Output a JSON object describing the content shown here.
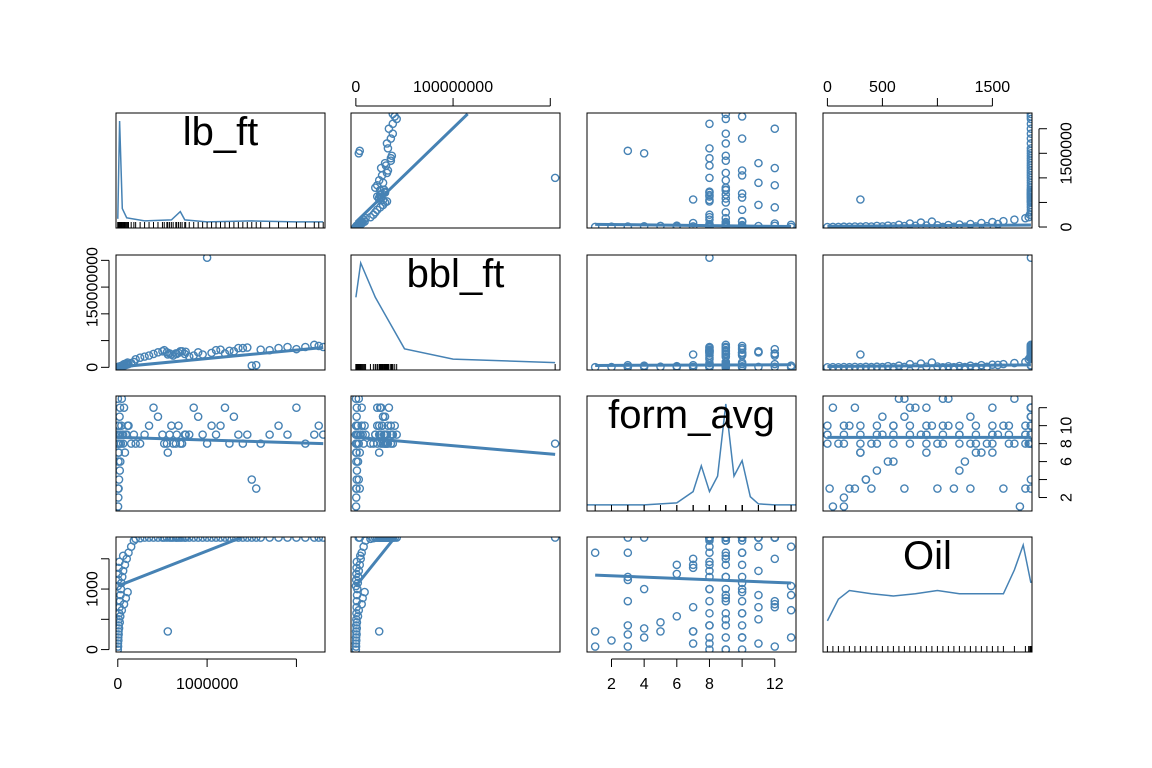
{
  "colors": {
    "series": "#4682B4",
    "axis": "#000000",
    "background": "#ffffff"
  },
  "chart_data": {
    "type": "scatter",
    "subtype": "scatterplot-matrix",
    "variables": [
      "lb_ft",
      "bbl_ft",
      "form_avg",
      "Oil"
    ],
    "diagonal": {
      "lb_ft": "density",
      "bbl_ft": "density",
      "form_avg": "density",
      "Oil": "density"
    },
    "ranges": {
      "lb_ft": [
        -20000,
        2320000
      ],
      "bbl_ft": [
        -5000000,
        210000000
      ],
      "form_avg": [
        0.5,
        13.3
      ],
      "Oil": [
        -40,
        1860
      ]
    },
    "axes": {
      "top": [
        {
          "column": 1,
          "variable": "bbl_ft",
          "ticks": [
            0,
            100000000,
            200000000
          ],
          "labels": [
            "0",
            "100000000",
            ""
          ]
        },
        {
          "column": 3,
          "variable": "Oil",
          "ticks": [
            0,
            500,
            1000,
            1500
          ],
          "labels": [
            "0",
            "500",
            "",
            "1500"
          ]
        }
      ],
      "bottom": [
        {
          "column": 0,
          "variable": "lb_ft",
          "ticks": [
            0,
            1000000,
            2000000
          ],
          "labels": [
            "0",
            "1000000",
            ""
          ]
        },
        {
          "column": 2,
          "variable": "form_avg",
          "ticks": [
            2,
            4,
            6,
            8,
            10,
            12
          ],
          "labels": [
            "2",
            "4",
            "6",
            "8",
            "",
            "12"
          ]
        }
      ],
      "left": [
        {
          "row": 1,
          "variable": "bbl_ft",
          "ticks": [
            0,
            50000000,
            100000000,
            150000000,
            200000000
          ],
          "labels": [
            "0",
            "",
            "",
            "150000000",
            ""
          ]
        },
        {
          "row": 3,
          "variable": "Oil",
          "ticks": [
            0,
            500,
            1000,
            1500
          ],
          "labels": [
            "0",
            "",
            "1000",
            ""
          ]
        }
      ],
      "right": [
        {
          "row": 0,
          "variable": "lb_ft",
          "ticks": [
            0,
            500000,
            1000000,
            1500000,
            2000000
          ],
          "labels": [
            "0",
            "",
            "",
            "1500000",
            ""
          ]
        },
        {
          "row": 2,
          "variable": "form_avg",
          "ticks": [
            2,
            4,
            6,
            8,
            10,
            12
          ],
          "labels": [
            "2",
            "",
            "6",
            "8",
            "10",
            ""
          ]
        }
      ]
    },
    "regressions": [
      {
        "y": "lb_ft",
        "x": "bbl_ft",
        "x1": 0,
        "y1": 100000,
        "x2": 115000000,
        "y2": 2300000
      },
      {
        "y": "lb_ft",
        "x": "form_avg",
        "x1": 1,
        "y1": 55000,
        "x2": 13,
        "y2": 10000
      },
      {
        "y": "lb_ft",
        "x": "Oil",
        "x1": 0,
        "y1": 15000,
        "x2": 1850,
        "y2": 40000
      },
      {
        "y": "bbl_ft",
        "x": "lb_ft",
        "x1": 0,
        "y1": 500000,
        "x2": 2300000,
        "y2": 37000000
      },
      {
        "y": "bbl_ft",
        "x": "form_avg",
        "x1": 1,
        "y1": 3500000,
        "x2": 13,
        "y2": 4800000
      },
      {
        "y": "bbl_ft",
        "x": "Oil",
        "x1": 0,
        "y1": 1500000,
        "x2": 1850,
        "y2": 4500000
      },
      {
        "y": "form_avg",
        "x": "lb_ft",
        "x1": 0,
        "y1": 8.7,
        "x2": 2300000,
        "y2": 8.0
      },
      {
        "y": "form_avg",
        "x": "bbl_ft",
        "x1": 0,
        "y1": 8.7,
        "x2": 205000000,
        "y2": 6.8
      },
      {
        "y": "form_avg",
        "x": "Oil",
        "x1": 0,
        "y1": 8.7,
        "x2": 1850,
        "y2": 8.7
      },
      {
        "y": "Oil",
        "x": "lb_ft",
        "x1": 0,
        "y1": 1050,
        "x2": 1380000,
        "y2": 1850
      },
      {
        "y": "Oil",
        "x": "bbl_ft",
        "x1": 0,
        "y1": 1050,
        "x2": 40000000,
        "y2": 1850
      },
      {
        "y": "Oil",
        "x": "form_avg",
        "x1": 1,
        "y1": 1230,
        "x2": 13,
        "y2": 1100
      }
    ],
    "points": {
      "lb_ft": [
        0,
        2000,
        5000,
        8000,
        10000,
        12000,
        15000,
        20000,
        25000,
        30000,
        35000,
        40000,
        50000,
        60000,
        80000,
        100000,
        120000,
        150000,
        180000,
        200000,
        250000,
        300000,
        350000,
        400000,
        450000,
        500000,
        520000,
        550000,
        580000,
        600000,
        650000,
        700000,
        750000,
        800000,
        850000,
        900000,
        950000,
        1000000,
        1050000,
        1100000,
        1200000,
        1300000,
        1400000,
        1500000,
        1550000,
        1600000,
        1700000,
        1800000,
        1900000,
        2000000,
        2100000,
        2200000,
        2250000,
        2300000,
        3000,
        6000,
        9000,
        14000,
        22000,
        28000,
        45000,
        70000,
        90000,
        110000,
        1000,
        4000,
        7000,
        11000,
        18000,
        60000,
        620000,
        660000,
        680000,
        720000,
        760000,
        1150000,
        1250000,
        1350000,
        560000,
        1450000
      ],
      "bbl_ft": [
        0,
        100000,
        200000,
        300000,
        400000,
        500000,
        600000,
        800000,
        1000000,
        1200000,
        1500000,
        2000000,
        2500000,
        3000000,
        4000000,
        5000000,
        6000000,
        8000000,
        10000000,
        15000000,
        18000000,
        20000000,
        22000000,
        25000000,
        28000000,
        30000000,
        32000000,
        28000000,
        26000000,
        24000000,
        26000000,
        30000000,
        25000000,
        20000000,
        22000000,
        28000000,
        24000000,
        205000000,
        27000000,
        32000000,
        26000000,
        30000000,
        36000000,
        3000000,
        4000000,
        33000000,
        32000000,
        36000000,
        38000000,
        34000000,
        38000000,
        42000000,
        40000000,
        38000000,
        200000,
        400000,
        700000,
        900000,
        1100000,
        2200000,
        3000000,
        6000000,
        7000000,
        9000000,
        150000,
        350000,
        550000,
        750000,
        950000,
        4500000,
        22000000,
        25000000,
        27000000,
        30000000,
        29000000,
        33000000,
        31000000,
        36000000,
        24000000,
        37000000
      ],
      "form_avg": [
        9,
        8,
        10,
        7,
        8,
        9,
        10,
        11,
        12,
        9,
        8,
        10,
        9,
        8,
        7,
        9,
        10,
        8,
        9,
        8,
        8,
        9,
        10,
        12,
        11,
        9,
        8,
        8,
        9,
        10,
        8,
        8,
        9,
        9,
        12,
        11,
        9,
        8,
        10,
        9,
        12,
        11,
        8,
        4,
        3,
        8,
        9,
        10,
        9,
        12,
        8,
        9,
        10,
        9,
        1,
        2,
        3,
        4,
        5,
        6,
        13,
        12,
        9,
        10,
        13,
        3,
        6,
        7,
        8,
        9,
        8,
        9,
        10,
        8,
        9,
        10,
        8,
        9,
        7,
        9
      ],
      "Oil": [
        0,
        100,
        200,
        300,
        400,
        500,
        600,
        700,
        800,
        900,
        1000,
        1100,
        1200,
        1300,
        1400,
        1500,
        1600,
        1700,
        1800,
        1830,
        1840,
        1850,
        1850,
        1850,
        1850,
        1850,
        1850,
        1850,
        1850,
        1850,
        1850,
        1850,
        1850,
        1850,
        1850,
        1850,
        1850,
        1850,
        1850,
        1850,
        1850,
        1850,
        1850,
        1850,
        1850,
        1850,
        1850,
        1850,
        1850,
        1850,
        1850,
        1850,
        1850,
        1850,
        50,
        150,
        250,
        350,
        450,
        550,
        650,
        750,
        850,
        950,
        1050,
        1150,
        1250,
        1350,
        1450,
        1550,
        1850,
        1850,
        1850,
        1850,
        1850,
        1850,
        1850,
        1850,
        300,
        1850
      ]
    },
    "extra_points": [
      {
        "x": "form_avg",
        "y": "Oil",
        "note": "vertical bands",
        "pairs": [
          [
            8,
            0
          ],
          [
            8,
            200
          ],
          [
            8,
            400
          ],
          [
            8,
            600
          ],
          [
            8,
            800
          ],
          [
            8,
            1000
          ],
          [
            8,
            1200
          ],
          [
            8,
            1400
          ],
          [
            8,
            1600
          ],
          [
            8,
            1800
          ],
          [
            9,
            0
          ],
          [
            9,
            200
          ],
          [
            9,
            400
          ],
          [
            9,
            600
          ],
          [
            9,
            800
          ],
          [
            9,
            1000
          ],
          [
            9,
            1200
          ],
          [
            9,
            1400
          ],
          [
            9,
            1600
          ],
          [
            9,
            1800
          ],
          [
            10,
            0
          ],
          [
            10,
            200
          ],
          [
            10,
            400
          ],
          [
            10,
            600
          ],
          [
            10,
            800
          ],
          [
            10,
            1000
          ],
          [
            10,
            1200
          ],
          [
            10,
            1400
          ],
          [
            10,
            1600
          ],
          [
            10,
            1800
          ],
          [
            11,
            100
          ],
          [
            11,
            500
          ],
          [
            11,
            900
          ],
          [
            11,
            1300
          ],
          [
            11,
            1700
          ],
          [
            12,
            50
          ],
          [
            12,
            700
          ],
          [
            12,
            1500
          ],
          [
            13,
            200
          ],
          [
            13,
            900
          ],
          [
            13,
            1700
          ],
          [
            3,
            50
          ],
          [
            3,
            400
          ],
          [
            3,
            800
          ],
          [
            3,
            1200
          ],
          [
            3,
            1600
          ],
          [
            1,
            300
          ],
          [
            1,
            1600
          ],
          [
            5,
            300
          ],
          [
            7,
            100
          ],
          [
            7,
            700
          ],
          [
            7,
            1500
          ],
          [
            6,
            1400
          ],
          [
            4,
            200
          ],
          [
            4,
            1000
          ]
        ]
      },
      {
        "x": "Oil",
        "y": "form_avg",
        "note": "horizontal bands",
        "pairs": [
          [
            0,
            8
          ],
          [
            150,
            8
          ],
          [
            300,
            8
          ],
          [
            450,
            8
          ],
          [
            600,
            8
          ],
          [
            750,
            8
          ],
          [
            900,
            8
          ],
          [
            1050,
            8
          ],
          [
            1200,
            8
          ],
          [
            1350,
            8
          ],
          [
            1500,
            8
          ],
          [
            1650,
            8
          ],
          [
            1800,
            8
          ],
          [
            0,
            9
          ],
          [
            150,
            9
          ],
          [
            300,
            9
          ],
          [
            450,
            9
          ],
          [
            600,
            9
          ],
          [
            750,
            9
          ],
          [
            900,
            9
          ],
          [
            1050,
            9
          ],
          [
            1200,
            9
          ],
          [
            1350,
            9
          ],
          [
            1500,
            9
          ],
          [
            1650,
            9
          ],
          [
            1800,
            9
          ],
          [
            0,
            10
          ],
          [
            150,
            10
          ],
          [
            300,
            10
          ],
          [
            450,
            10
          ],
          [
            600,
            10
          ],
          [
            750,
            10
          ],
          [
            900,
            10
          ],
          [
            1050,
            10
          ],
          [
            1200,
            10
          ],
          [
            1350,
            10
          ],
          [
            1500,
            10
          ],
          [
            1650,
            10
          ],
          [
            1800,
            10
          ],
          [
            50,
            12
          ],
          [
            250,
            12
          ],
          [
            500,
            11
          ],
          [
            700,
            13
          ],
          [
            900,
            12
          ],
          [
            1100,
            13
          ],
          [
            1300,
            11
          ],
          [
            1500,
            12
          ],
          [
            1700,
            13
          ],
          [
            1850,
            12
          ],
          [
            20,
            3
          ],
          [
            200,
            3
          ],
          [
            400,
            3
          ],
          [
            700,
            3
          ],
          [
            1000,
            3
          ],
          [
            1300,
            3
          ],
          [
            1600,
            3
          ],
          [
            1800,
            3
          ],
          [
            150,
            1
          ],
          [
            350,
            4
          ],
          [
            600,
            6
          ],
          [
            900,
            7
          ],
          [
            1200,
            5
          ],
          [
            1500,
            7
          ],
          [
            1750,
            1
          ]
        ]
      }
    ],
    "density": {
      "lb_ft": {
        "x": [
          0,
          20000,
          50000,
          100000,
          300000,
          600000,
          700000,
          750000,
          1000000,
          1500000,
          2000000,
          2300000
        ],
        "y": [
          0.05,
          1.0,
          0.15,
          0.06,
          0.03,
          0.04,
          0.12,
          0.04,
          0.02,
          0.03,
          0.02,
          0.02
        ]
      },
      "bbl_ft": {
        "x": [
          0,
          5000000,
          20000000,
          50000000,
          100000000,
          205000000
        ],
        "y": [
          0.02,
          0.03,
          0.02,
          0.005,
          0.002,
          0.001
        ]
      },
      "form_avg": {
        "x": [
          0.5,
          2,
          4,
          6,
          7,
          7.5,
          8,
          8.5,
          9,
          9.5,
          10,
          10.5,
          11,
          12,
          13.3
        ],
        "y": [
          0.02,
          0.02,
          0.02,
          0.04,
          0.15,
          0.4,
          0.15,
          0.3,
          1.0,
          0.3,
          0.45,
          0.1,
          0.03,
          0.02,
          0.02
        ]
      },
      "Oil": {
        "x": [
          0,
          100,
          200,
          400,
          600,
          800,
          1000,
          1200,
          1400,
          1600,
          1700,
          1780,
          1850
        ],
        "y": [
          0.25,
          0.45,
          0.53,
          0.5,
          0.48,
          0.5,
          0.53,
          0.5,
          0.5,
          0.5,
          0.72,
          0.95,
          0.6
        ]
      }
    },
    "grid": false,
    "legend": "none"
  }
}
